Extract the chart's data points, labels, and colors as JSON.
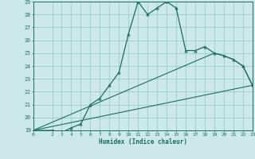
{
  "title": "",
  "xlabel": "Humidex (Indice chaleur)",
  "bg_color": "#cce8e8",
  "grid_color": "#99cccc",
  "line_color": "#1a6e60",
  "xlim": [
    0,
    23
  ],
  "ylim": [
    19,
    29
  ],
  "xticks": [
    0,
    2,
    3,
    4,
    5,
    6,
    7,
    8,
    9,
    10,
    11,
    12,
    13,
    14,
    15,
    16,
    17,
    18,
    19,
    20,
    21,
    22,
    23
  ],
  "yticks": [
    19,
    20,
    21,
    22,
    23,
    24,
    25,
    26,
    27,
    28,
    29
  ],
  "line1_x": [
    0,
    2,
    3,
    4,
    5,
    6,
    7,
    8,
    9,
    10,
    11,
    12,
    13,
    14,
    15,
    16,
    17,
    18,
    19,
    20,
    21,
    22,
    23
  ],
  "line1_y": [
    19,
    19,
    18.85,
    19.2,
    19.5,
    21.0,
    21.5,
    22.5,
    23.5,
    26.5,
    29.0,
    28.0,
    28.5,
    29.0,
    28.5,
    25.2,
    25.2,
    25.5,
    25.0,
    24.8,
    24.5,
    24.0,
    22.5
  ],
  "line2_x": [
    0,
    23
  ],
  "line2_y": [
    19,
    22.5
  ],
  "line3_x": [
    0,
    19,
    20,
    21,
    22,
    23
  ],
  "line3_y": [
    19,
    25.0,
    24.8,
    24.5,
    24.0,
    22.5
  ],
  "tick_color": "#1a6e60",
  "label_fontsize": 4.5,
  "xlabel_fontsize": 5.5
}
